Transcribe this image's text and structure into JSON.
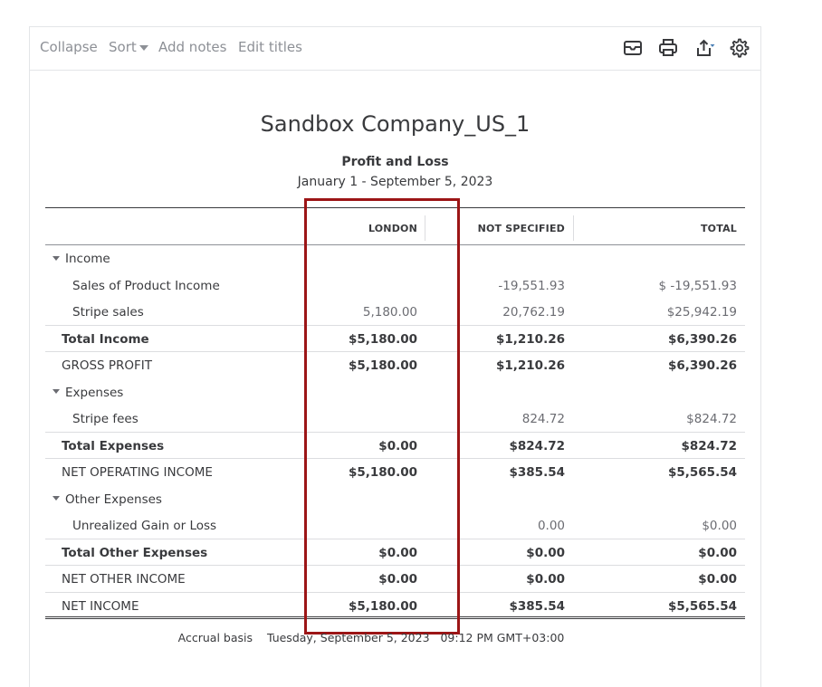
{
  "toolbar": {
    "collapse": "Collapse",
    "sort": "Sort",
    "add_notes": "Add notes",
    "edit_titles": "Edit titles"
  },
  "report": {
    "company": "Sandbox Company_US_1",
    "title": "Profit and Loss",
    "period": "January 1 - September 5, 2023"
  },
  "columns": {
    "c1": "LONDON",
    "c2": "NOT SPECIFIED",
    "c3": "TOTAL"
  },
  "rows": [
    {
      "label": "Income",
      "v1": "",
      "v2": "",
      "v3": ""
    },
    {
      "label": "Sales of Product Income",
      "v1": "",
      "v2": "-19,551.93",
      "v3": "$ -19,551.93"
    },
    {
      "label": "Stripe sales",
      "v1": "5,180.00",
      "v2": "20,762.19",
      "v3": "$25,942.19"
    },
    {
      "label": "Total Income",
      "v1": "$5,180.00",
      "v2": "$1,210.26",
      "v3": "$6,390.26"
    },
    {
      "label": "GROSS PROFIT",
      "v1": "$5,180.00",
      "v2": "$1,210.26",
      "v3": "$6,390.26"
    },
    {
      "label": "Expenses",
      "v1": "",
      "v2": "",
      "v3": ""
    },
    {
      "label": "Stripe fees",
      "v1": "",
      "v2": "824.72",
      "v3": "$824.72"
    },
    {
      "label": "Total Expenses",
      "v1": "$0.00",
      "v2": "$824.72",
      "v3": "$824.72"
    },
    {
      "label": "NET OPERATING INCOME",
      "v1": "$5,180.00",
      "v2": "$385.54",
      "v3": "$5,565.54"
    },
    {
      "label": "Other Expenses",
      "v1": "",
      "v2": "",
      "v3": ""
    },
    {
      "label": "Unrealized Gain or Loss",
      "v1": "",
      "v2": "0.00",
      "v3": "$0.00"
    },
    {
      "label": "Total Other Expenses",
      "v1": "$0.00",
      "v2": "$0.00",
      "v3": "$0.00"
    },
    {
      "label": "NET OTHER INCOME",
      "v1": "$0.00",
      "v2": "$0.00",
      "v3": "$0.00"
    },
    {
      "label": "NET INCOME",
      "v1": "$5,180.00",
      "v2": "$385.54",
      "v3": "$5,565.54"
    }
  ],
  "footer": {
    "basis": "Accrual basis",
    "timestamp": "Tuesday, September 5, 2023   09:12 PM GMT+03:00"
  },
  "icons": {
    "email": "email-icon",
    "print": "print-icon",
    "export": "export-icon",
    "settings": "gear-icon"
  },
  "colors": {
    "highlight": "#9c1516",
    "link": "#8d9096",
    "text": "#393a3d"
  }
}
